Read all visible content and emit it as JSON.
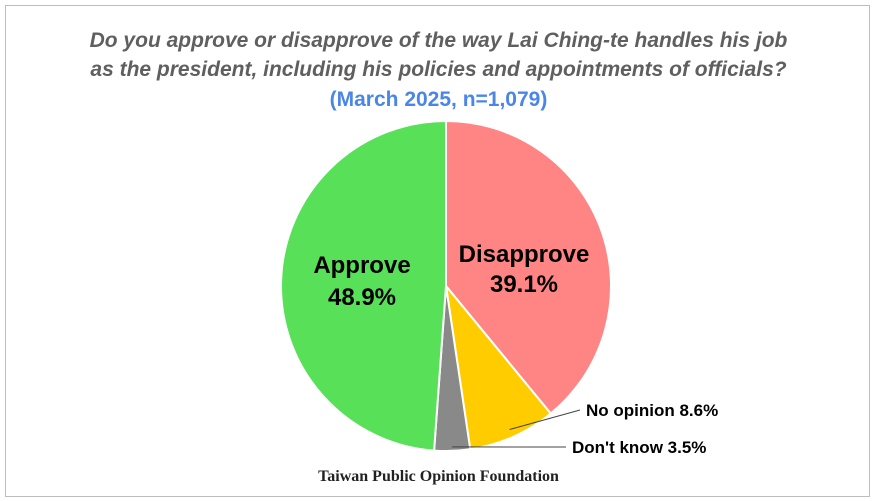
{
  "chart_data": {
    "type": "pie",
    "title_line1": "Do you approve or disapprove of the way Lai Ching-te handles his job",
    "title_line2": "as the president, including his policies and appointments of officials?",
    "subtitle": "(March 2025, n=1,079)",
    "source": "Taiwan Public Opinion Foundation",
    "slices": [
      {
        "label": "Disapprove",
        "value": 39.1,
        "value_label": "39.1%",
        "color": "#ff8484"
      },
      {
        "label": "No opinion",
        "value": 8.6,
        "value_label": "8.6%",
        "color": "#ffcc00"
      },
      {
        "label": "Don't know",
        "value": 3.5,
        "value_label": "3.5%",
        "color": "#898989"
      },
      {
        "label": "Approve",
        "value": 48.9,
        "value_label": "48.9%",
        "color": "#58e058"
      }
    ]
  }
}
